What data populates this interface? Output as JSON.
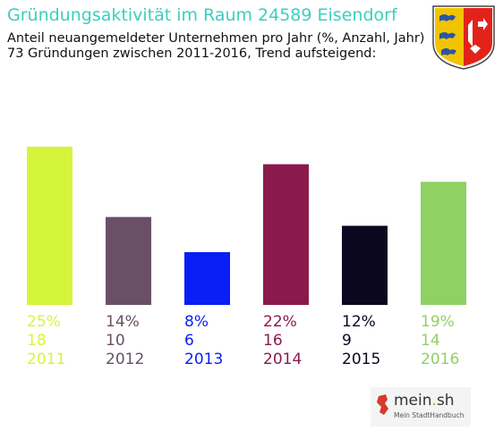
{
  "header": {
    "title": "Gründungsaktivität im Raum 24589 Eisendorf",
    "subtitle_line1": "Anteil neuangemeldeter Unternehmen pro Jahr (%, Anzahl, Jahr)",
    "subtitle_line2": "73 Gründungen zwischen 2011-2016, Trend aufsteigend:"
  },
  "coat_of_arms": {
    "name": "schleswig-holstein-coat-of-arms-icon",
    "colors": [
      "#2a55a8",
      "#f2c400",
      "#e2231a",
      "#ffffff"
    ]
  },
  "chart_data": {
    "type": "bar",
    "title": "Gründungsaktivität im Raum 24589 Eisendorf",
    "categories": [
      "2011",
      "2012",
      "2013",
      "2014",
      "2015",
      "2016"
    ],
    "percent_labels": [
      "25%",
      "14%",
      "8%",
      "22%",
      "12%",
      "19%"
    ],
    "values": [
      18,
      10,
      6,
      16,
      9,
      14
    ],
    "colors": [
      "#d4f53c",
      "#6b4f66",
      "#0a1ef5",
      "#8b1a4c",
      "#0c0720",
      "#8fd162"
    ],
    "ylim": [
      0,
      18
    ],
    "grid": false,
    "legend": "none"
  },
  "footer": {
    "logo_main": "mein",
    "logo_dot": ".",
    "logo_tld": "sh",
    "logo_sub": "Mein StadtHandbuch"
  }
}
